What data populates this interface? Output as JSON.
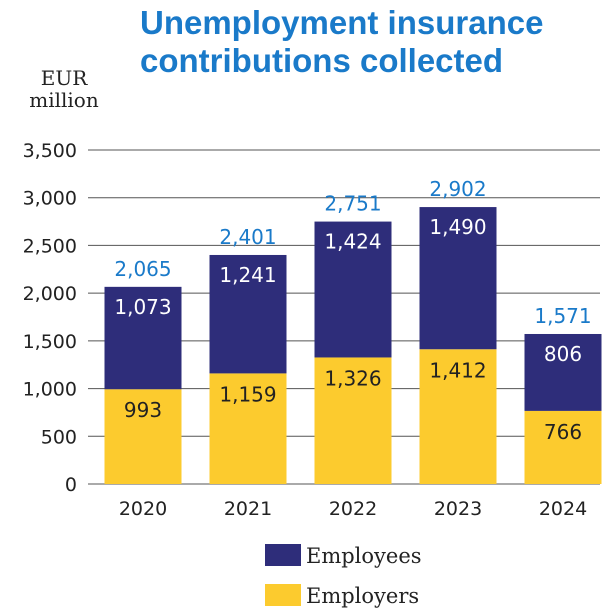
{
  "chart_data": {
    "type": "bar",
    "stacked": true,
    "title": "Unemployment insurance contributions collected",
    "title_lines": [
      "Unemployment insurance",
      "contributions collected"
    ],
    "unit_label_lines": [
      "EUR",
      "million"
    ],
    "categories": [
      "2020",
      "2021",
      "2022",
      "2023",
      "2024"
    ],
    "series": [
      {
        "name": "Employers",
        "values": [
          993,
          1159,
          1326,
          1412,
          766
        ],
        "color": "#fccb2e",
        "label_color": "#222222"
      },
      {
        "name": "Employees",
        "values": [
          1073,
          1241,
          1424,
          1490,
          806
        ],
        "color": "#2e2d7a",
        "label_color": "#ffffff"
      }
    ],
    "totals": [
      2065,
      2401,
      2751,
      2902,
      1571
    ],
    "yticks": [
      0,
      500,
      1000,
      1500,
      2000,
      2500,
      3000,
      3500
    ],
    "ylim": [
      0,
      3500
    ],
    "grid": true,
    "legend_order": [
      "Employees",
      "Employers"
    ],
    "legend_placement": "bottom-center",
    "total_color": "#1a7ac9"
  }
}
